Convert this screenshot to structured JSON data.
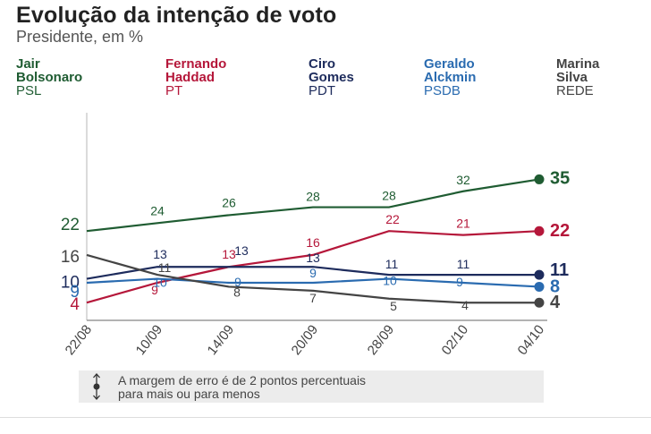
{
  "chart_data": {
    "type": "line",
    "title": "Evolução da intenção de voto",
    "subtitle": "Presidente, em %",
    "x": [
      "22/08",
      "10/09",
      "14/09",
      "20/09",
      "28/09",
      "02/10",
      "04/10"
    ],
    "ylim": [
      0,
      40
    ],
    "grid": false,
    "legend_placement": "top",
    "series": [
      {
        "name": "Jair Bolsonaro",
        "party": "PSL",
        "color": "#1f5c32",
        "values": [
          22,
          24,
          26,
          28,
          28,
          32,
          35
        ]
      },
      {
        "name": "Fernando Haddad",
        "party": "PT",
        "color": "#b5173a",
        "values": [
          4,
          9,
          13,
          16,
          22,
          21,
          22
        ]
      },
      {
        "name": "Ciro Gomes",
        "party": "PDT",
        "color": "#1d2b5c",
        "values": [
          10,
          13,
          13,
          13,
          11,
          11,
          11
        ]
      },
      {
        "name": "Geraldo Alckmin",
        "party": "PSDB",
        "color": "#2a6bb0",
        "values": [
          9,
          10,
          9,
          9,
          10,
          9,
          8
        ]
      },
      {
        "name": "Marina Silva",
        "party": "REDE",
        "color": "#444444",
        "values": [
          16,
          11,
          8,
          7,
          5,
          4,
          4
        ]
      }
    ]
  },
  "legend": [
    {
      "name": "Jair\nBolsonaro",
      "party": "PSL"
    },
    {
      "name": "Fernando\nHaddad",
      "party": "PT"
    },
    {
      "name": "Ciro\nGomes",
      "party": "PDT"
    },
    {
      "name": "Geraldo\nAlckmin",
      "party": "PSDB"
    },
    {
      "name": "Marina\nSilva",
      "party": "REDE"
    }
  ],
  "note": {
    "text": "A margem de erro é de 2 pontos percentuais\npara mais ou para menos",
    "icon": "error-margin-icon"
  }
}
